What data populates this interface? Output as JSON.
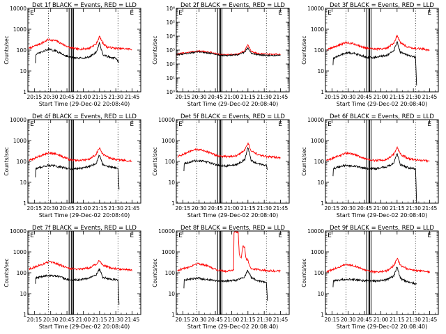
{
  "figure": {
    "x_ticks": [
      "20:15",
      "20:30",
      "20:45",
      "21:00",
      "21:15",
      "21:30",
      "21:45"
    ],
    "x_tick_minutes": [
      15,
      30,
      45,
      60,
      75,
      90,
      105
    ],
    "x_range_minutes": [
      9,
      113
    ],
    "xlabel": "Start Time (29-Dec-02 20:08:40)",
    "ylabel": "Counts/sec",
    "y_ticks_standard": [
      "1",
      "10",
      "100",
      "1000",
      "10000"
    ],
    "y_ticks_exponent": [
      "10⁰",
      "10¹",
      "10²",
      "10³",
      "10⁴",
      "10⁵",
      "10⁶"
    ],
    "corner_markers": [
      "E",
      "E"
    ],
    "colors": {
      "events": "#000000",
      "lld": "#ff0000",
      "axes": "#000000"
    }
  },
  "chart_data": [
    {
      "type": "line",
      "title": "Det 1f BLACK = Events, RED = LLD",
      "xlabel": "Start Time (29-Dec-02 20:08:40)",
      "ylabel": "Counts/sec",
      "yscale": "log",
      "ylim": [
        1,
        10000
      ],
      "tick_style": "standard",
      "dotted_x": [
        28,
        92
      ],
      "solid_x": [
        47,
        49,
        49.7,
        51
      ],
      "series": [
        {
          "name": "LLD",
          "color": "#ff0000",
          "start": 10,
          "end": 105,
          "x": [
            10,
            22,
            28,
            35,
            42,
            48,
            55,
            65,
            72,
            75,
            78,
            82,
            90,
            100,
            105
          ],
          "y": [
            120,
            220,
            320,
            280,
            180,
            130,
            110,
            120,
            200,
            450,
            220,
            140,
            120,
            115,
            110
          ]
        },
        {
          "name": "Events",
          "color": "#000000",
          "start": 16,
          "end": 93,
          "x": [
            16,
            16,
            22,
            28,
            35,
            42,
            48,
            55,
            65,
            72,
            75,
            78,
            85,
            90,
            93
          ],
          "y": [
            25,
            60,
            80,
            110,
            90,
            60,
            45,
            40,
            45,
            80,
            220,
            60,
            45,
            40,
            25
          ]
        }
      ]
    },
    {
      "type": "line",
      "title": "Det 2f BLACK = Events, RED = LLD",
      "xlabel": "Start Time (29-Dec-02 20:08:40)",
      "ylabel": "Counts/sec",
      "yscale": "log",
      "ylim": [
        1,
        1000000
      ],
      "tick_style": "exponent",
      "dotted_x": [
        28,
        92
      ],
      "solid_x": [
        47,
        49,
        49.7,
        51
      ],
      "series": [
        {
          "name": "LLD",
          "color": "#ff0000",
          "start": 9,
          "end": 105,
          "x": [
            9,
            20,
            30,
            40,
            48,
            55,
            65,
            72,
            75,
            78,
            85,
            95,
            105
          ],
          "y": [
            500,
            700,
            850,
            700,
            500,
            450,
            500,
            900,
            2500,
            800,
            550,
            500,
            500
          ]
        },
        {
          "name": "Events",
          "color": "#000000",
          "start": 9,
          "end": 105,
          "x": [
            9,
            20,
            30,
            40,
            48,
            55,
            65,
            72,
            75,
            78,
            85,
            95,
            105
          ],
          "y": [
            450,
            600,
            750,
            600,
            450,
            400,
            450,
            700,
            1500,
            600,
            450,
            400,
            400
          ]
        }
      ]
    },
    {
      "type": "line",
      "title": "Det 3f BLACK = Events, RED = LLD",
      "xlabel": "Start Time (29-Dec-02 20:08:40)",
      "ylabel": "Counts/sec",
      "yscale": "log",
      "ylim": [
        1,
        10000
      ],
      "tick_style": "standard",
      "dotted_x": [
        28,
        92
      ],
      "solid_x": [
        47,
        49,
        49.7,
        51
      ],
      "series": [
        {
          "name": "LLD",
          "color": "#ff0000",
          "start": 10,
          "end": 105,
          "x": [
            10,
            22,
            28,
            35,
            42,
            48,
            55,
            65,
            72,
            75,
            78,
            85,
            92,
            100,
            105
          ],
          "y": [
            100,
            180,
            230,
            200,
            150,
            120,
            110,
            120,
            220,
            500,
            230,
            140,
            120,
            110,
            100
          ]
        },
        {
          "name": "Events",
          "color": "#000000",
          "start": 16,
          "end": 93,
          "x": [
            16,
            16,
            22,
            28,
            35,
            42,
            48,
            55,
            65,
            72,
            75,
            78,
            85,
            92,
            93
          ],
          "y": [
            20,
            40,
            55,
            75,
            70,
            55,
            45,
            45,
            55,
            90,
            250,
            80,
            55,
            45,
            2
          ]
        }
      ]
    },
    {
      "type": "line",
      "title": "Det 4f BLACK = Events, RED = LLD",
      "xlabel": "Start Time (29-Dec-02 20:08:40)",
      "ylabel": "Counts/sec",
      "yscale": "log",
      "ylim": [
        1,
        10000
      ],
      "tick_style": "standard",
      "dotted_x": [
        28,
        92
      ],
      "solid_x": [
        47,
        49,
        49.7,
        51
      ],
      "series": [
        {
          "name": "LLD",
          "color": "#ff0000",
          "start": 10,
          "end": 105,
          "x": [
            10,
            22,
            28,
            35,
            42,
            48,
            55,
            65,
            72,
            75,
            78,
            85,
            92,
            100,
            105
          ],
          "y": [
            110,
            200,
            260,
            230,
            160,
            120,
            110,
            120,
            220,
            480,
            220,
            140,
            120,
            110,
            100
          ]
        },
        {
          "name": "Events",
          "color": "#000000",
          "start": 16,
          "end": 93,
          "x": [
            16,
            16,
            22,
            28,
            35,
            42,
            48,
            55,
            65,
            72,
            75,
            78,
            85,
            92,
            93
          ],
          "y": [
            18,
            45,
            55,
            65,
            60,
            50,
            45,
            45,
            55,
            80,
            220,
            70,
            55,
            45,
            5
          ]
        }
      ]
    },
    {
      "type": "line",
      "title": "Det 5f BLACK = Events, RED = LLD",
      "xlabel": "Start Time (29-Dec-02 20:08:40)",
      "ylabel": "Counts/sec",
      "yscale": "log",
      "ylim": [
        1,
        10000
      ],
      "tick_style": "standard",
      "dotted_x": [
        28,
        92
      ],
      "solid_x": [
        47,
        49,
        49.7,
        51
      ],
      "series": [
        {
          "name": "LLD",
          "color": "#ff0000",
          "start": 10,
          "end": 105,
          "x": [
            10,
            22,
            28,
            35,
            42,
            48,
            55,
            65,
            72,
            75,
            78,
            85,
            92,
            100,
            105
          ],
          "y": [
            170,
            300,
            380,
            330,
            230,
            180,
            170,
            190,
            350,
            750,
            320,
            200,
            170,
            160,
            150
          ]
        },
        {
          "name": "Events",
          "color": "#000000",
          "start": 16,
          "end": 93,
          "x": [
            16,
            16,
            22,
            28,
            35,
            42,
            48,
            55,
            65,
            72,
            75,
            78,
            85,
            92,
            93
          ],
          "y": [
            35,
            80,
            95,
            110,
            100,
            80,
            65,
            60,
            70,
            120,
            480,
            110,
            75,
            65,
            40
          ]
        }
      ]
    },
    {
      "type": "line",
      "title": "Det 6f BLACK = Events, RED = LLD",
      "xlabel": "Start Time (29-Dec-02 20:08:40)",
      "ylabel": "Counts/sec",
      "yscale": "log",
      "ylim": [
        1,
        10000
      ],
      "tick_style": "standard",
      "dotted_x": [
        28,
        92
      ],
      "solid_x": [
        47,
        49,
        49.7,
        51
      ],
      "series": [
        {
          "name": "LLD",
          "color": "#ff0000",
          "start": 10,
          "end": 105,
          "x": [
            10,
            22,
            28,
            35,
            42,
            48,
            55,
            65,
            72,
            75,
            78,
            85,
            92,
            100,
            105
          ],
          "y": [
            110,
            190,
            250,
            220,
            160,
            120,
            110,
            120,
            220,
            500,
            220,
            140,
            120,
            110,
            100
          ]
        },
        {
          "name": "Events",
          "color": "#000000",
          "start": 16,
          "end": 93,
          "x": [
            16,
            16,
            22,
            28,
            35,
            42,
            48,
            55,
            65,
            72,
            75,
            78,
            85,
            92,
            93
          ],
          "y": [
            20,
            45,
            55,
            65,
            60,
            50,
            45,
            45,
            55,
            80,
            250,
            70,
            50,
            45,
            1
          ]
        }
      ]
    },
    {
      "type": "line",
      "title": "Det 7f BLACK = Events, RED = LLD",
      "xlabel": "Start Time (29-Dec-02 20:08:40)",
      "ylabel": "Counts/sec",
      "yscale": "log",
      "ylim": [
        1,
        10000
      ],
      "tick_style": "standard",
      "dotted_x": [
        28,
        92
      ],
      "solid_x": [
        47,
        49,
        49.7,
        51
      ],
      "series": [
        {
          "name": "LLD",
          "color": "#ff0000",
          "start": 10,
          "end": 105,
          "x": [
            10,
            22,
            28,
            35,
            42,
            48,
            55,
            65,
            72,
            75,
            78,
            85,
            92,
            100,
            105
          ],
          "y": [
            150,
            250,
            330,
            280,
            200,
            160,
            150,
            170,
            260,
            400,
            230,
            170,
            150,
            140,
            130
          ]
        },
        {
          "name": "Events",
          "color": "#000000",
          "start": 16,
          "end": 93,
          "x": [
            16,
            16,
            22,
            28,
            35,
            42,
            48,
            55,
            65,
            72,
            75,
            78,
            85,
            92,
            93
          ],
          "y": [
            30,
            55,
            65,
            75,
            70,
            55,
            45,
            45,
            55,
            80,
            150,
            60,
            50,
            45,
            3
          ]
        }
      ]
    },
    {
      "type": "line",
      "title": "Det 8f BLACK = Events, RED = LLD",
      "xlabel": "Start Time (29-Dec-02 20:08:40)",
      "ylabel": "Counts/sec",
      "yscale": "log",
      "ylim": [
        1,
        10000
      ],
      "tick_style": "standard",
      "dotted_x": [
        28,
        92
      ],
      "solid_x": [
        47,
        49,
        49.7,
        51
      ],
      "series": [
        {
          "name": "LLD",
          "color": "#ff0000",
          "start": 10,
          "end": 105,
          "x": [
            10,
            22,
            28,
            35,
            42,
            48,
            55,
            62,
            62,
            66,
            67,
            69,
            70,
            72,
            73,
            75,
            77,
            78,
            85,
            92,
            100,
            105
          ],
          "y": [
            130,
            200,
            280,
            240,
            170,
            130,
            120,
            140,
            9000,
            9000,
            700,
            500,
            1800,
            1800,
            500,
            400,
            200,
            160,
            140,
            130,
            120,
            120
          ]
        },
        {
          "name": "Events",
          "color": "#000000",
          "start": 16,
          "end": 93,
          "x": [
            16,
            16,
            22,
            28,
            35,
            42,
            48,
            55,
            65,
            72,
            75,
            78,
            85,
            92,
            93
          ],
          "y": [
            18,
            45,
            50,
            55,
            50,
            45,
            40,
            40,
            45,
            65,
            130,
            60,
            40,
            35,
            5
          ]
        }
      ]
    },
    {
      "type": "line",
      "title": "Det 9f BLACK = Events, RED = LLD",
      "xlabel": "Start Time (29-Dec-02 20:08:40)",
      "ylabel": "Counts/sec",
      "yscale": "log",
      "ylim": [
        1,
        10000
      ],
      "tick_style": "standard",
      "dotted_x": [
        28,
        92
      ],
      "solid_x": [
        47,
        49,
        49.7,
        51
      ],
      "series": [
        {
          "name": "LLD",
          "color": "#ff0000",
          "start": 10,
          "end": 105,
          "x": [
            10,
            22,
            28,
            35,
            42,
            48,
            55,
            65,
            72,
            75,
            78,
            85,
            92,
            100,
            105
          ],
          "y": [
            110,
            190,
            250,
            220,
            160,
            120,
            110,
            120,
            220,
            500,
            230,
            150,
            125,
            115,
            110
          ]
        },
        {
          "name": "Events",
          "color": "#000000",
          "start": 16,
          "end": 93,
          "x": [
            16,
            16,
            22,
            28,
            35,
            42,
            48,
            55,
            65,
            72,
            75,
            78,
            85,
            92,
            93
          ],
          "y": [
            20,
            40,
            45,
            50,
            48,
            42,
            40,
            40,
            45,
            70,
            200,
            55,
            35,
            30,
            30
          ]
        }
      ]
    }
  ]
}
